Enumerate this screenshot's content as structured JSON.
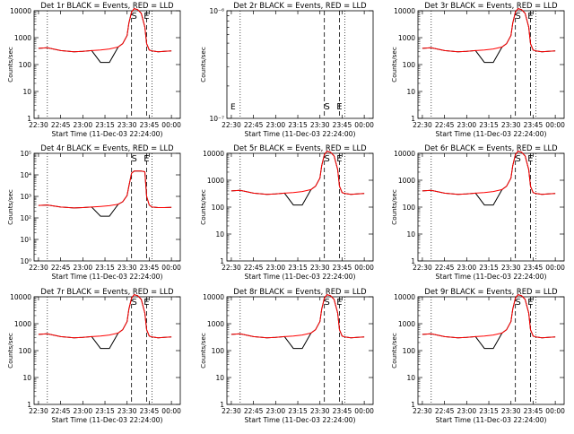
{
  "chart_data": {
    "type": "line",
    "layout": "3x3 grid",
    "x_tick_labels": [
      "22:30",
      "22:45",
      "23:00",
      "23:15",
      "23:30",
      "23:45",
      "00:00"
    ],
    "x_tick_hours": [
      22.5,
      22.75,
      23.0,
      23.25,
      23.5,
      23.75,
      24.0
    ],
    "xlim_hours": [
      22.45,
      24.1
    ],
    "xlabel": "Start Time (11-Dec-03 22:24:00)",
    "ylabel": "Counts/sec",
    "ylim": [
      1,
      10000
    ],
    "yscale": "log",
    "y_tick_labels": [
      "1",
      "10",
      "100",
      "1000",
      "10000"
    ],
    "series_colors": {
      "events": "#000000",
      "lld": "#ff0000"
    },
    "markers": {
      "dotted_hours": [
        22.6,
        23.78
      ],
      "dashed_hours": [
        23.55,
        23.72
      ],
      "labels": [
        {
          "text": "S",
          "hour": 23.58
        },
        {
          "text": "E",
          "hour": 23.72
        }
      ]
    },
    "profile_hours": [
      22.5,
      22.6,
      22.75,
      22.9,
      23.0,
      23.1,
      23.2,
      23.3,
      23.4,
      23.45,
      23.5,
      23.52,
      23.55,
      23.58,
      23.62,
      23.66,
      23.7,
      23.72,
      23.75,
      23.78,
      23.85,
      23.92,
      24.0
    ],
    "events_dip": {
      "from_hour": 23.15,
      "to_hour": 23.3,
      "value": 120
    },
    "panels": [
      {
        "title": "Det 1r BLACK = Events, RED = LLD",
        "has_data": true,
        "values": [
          400,
          420,
          330,
          300,
          310,
          330,
          350,
          380,
          450,
          600,
          1200,
          3500,
          9000,
          12000,
          11000,
          8000,
          2500,
          600,
          350,
          320,
          300,
          310,
          320
        ]
      },
      {
        "title": "Det 2r BLACK = Events, RED = LLD",
        "has_data": false,
        "ylim": [
          1e-07,
          1e-06
        ],
        "y_tick_labels": [
          "10⁻⁶",
          "10⁻⁷"
        ]
      },
      {
        "title": "Det 3r BLACK = Events, RED = LLD",
        "has_data": true,
        "values": [
          400,
          420,
          330,
          300,
          310,
          330,
          350,
          380,
          450,
          600,
          1200,
          3500,
          9000,
          12000,
          11000,
          8000,
          2500,
          600,
          350,
          320,
          300,
          310,
          320
        ]
      },
      {
        "title": "Det 4r BLACK = Events, RED = LLD",
        "has_data": true,
        "ylim": [
          1,
          100000
        ],
        "y_tick_labels": [
          "10⁰",
          "10¹",
          "10²",
          "10³",
          "10⁴",
          "10⁵"
        ],
        "values": [
          380,
          400,
          320,
          290,
          300,
          320,
          340,
          370,
          430,
          560,
          1100,
          3000,
          12000,
          15000,
          15000,
          15000,
          14000,
          1000,
          400,
          320,
          300,
          300,
          310
        ]
      },
      {
        "title": "Det 5r BLACK = Events, RED = LLD",
        "has_data": true,
        "values": [
          400,
          420,
          330,
          300,
          310,
          330,
          350,
          380,
          450,
          600,
          1200,
          3500,
          9000,
          12000,
          11000,
          8000,
          2500,
          600,
          350,
          320,
          300,
          310,
          320
        ]
      },
      {
        "title": "Det 6r BLACK = Events, RED = LLD",
        "has_data": true,
        "values": [
          400,
          420,
          330,
          300,
          310,
          330,
          350,
          380,
          450,
          600,
          1200,
          3500,
          9000,
          12000,
          11000,
          8000,
          2500,
          600,
          350,
          320,
          300,
          310,
          320
        ]
      },
      {
        "title": "Det 7r BLACK = Events, RED = LLD",
        "has_data": true,
        "values": [
          400,
          420,
          330,
          300,
          310,
          330,
          350,
          380,
          450,
          600,
          1200,
          3500,
          9000,
          12000,
          11000,
          8000,
          2500,
          600,
          350,
          320,
          300,
          310,
          320
        ]
      },
      {
        "title": "Det 8r BLACK = Events, RED = LLD",
        "has_data": true,
        "values": [
          400,
          420,
          330,
          300,
          310,
          330,
          350,
          380,
          450,
          600,
          1200,
          3500,
          9000,
          12000,
          11000,
          8000,
          2500,
          600,
          350,
          320,
          300,
          310,
          320
        ]
      },
      {
        "title": "Det 9r BLACK = Events, RED = LLD",
        "has_data": true,
        "values": [
          400,
          420,
          330,
          300,
          310,
          330,
          350,
          380,
          450,
          600,
          1200,
          3500,
          9000,
          12000,
          11000,
          8000,
          2500,
          600,
          350,
          320,
          300,
          310,
          320
        ]
      }
    ]
  }
}
